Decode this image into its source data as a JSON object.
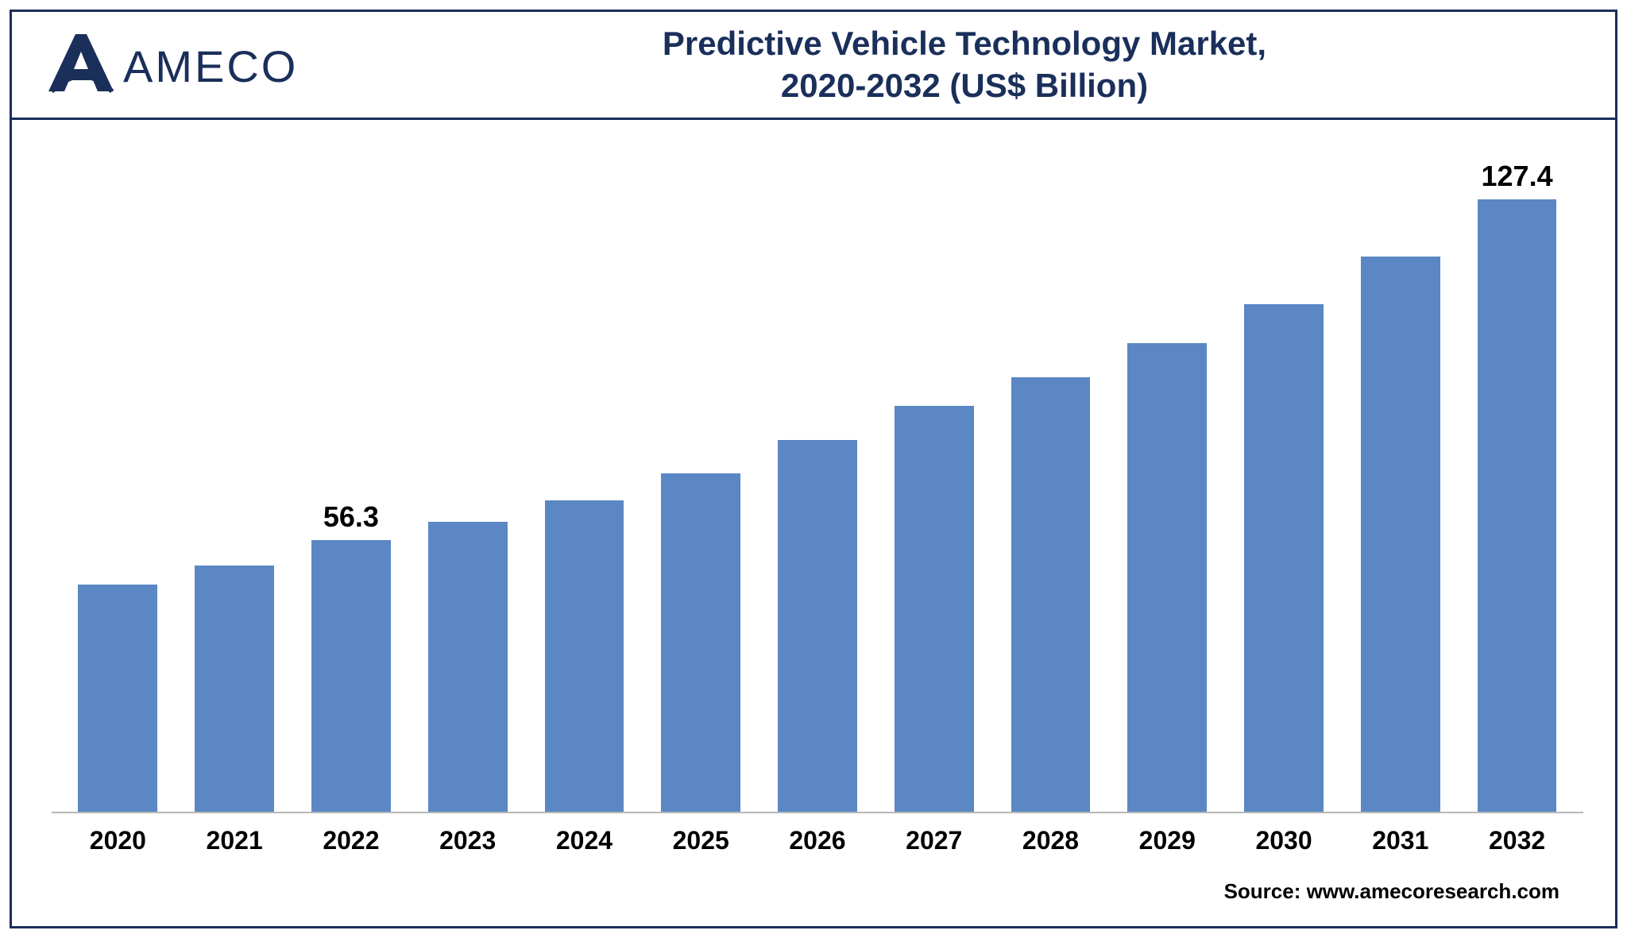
{
  "brand": {
    "name": "AMECO",
    "logo_color": "#1a2f5a"
  },
  "title": {
    "line1": "Predictive Vehicle Technology Market,",
    "line2": "2020-2032 (US$ Billion)",
    "color": "#1a2f5a",
    "fontsize": 42,
    "weight": 700
  },
  "chart": {
    "type": "bar",
    "categories": [
      "2020",
      "2021",
      "2022",
      "2023",
      "2024",
      "2025",
      "2026",
      "2027",
      "2028",
      "2029",
      "2030",
      "2031",
      "2032"
    ],
    "values": [
      47.0,
      51.0,
      56.3,
      60.0,
      64.5,
      70.0,
      77.0,
      84.0,
      90.0,
      97.0,
      105.0,
      115.0,
      127.4
    ],
    "show_value_label": [
      false,
      false,
      true,
      false,
      false,
      false,
      false,
      false,
      false,
      false,
      false,
      false,
      true
    ],
    "value_labels": [
      "",
      "",
      "56.3",
      "",
      "",
      "",
      "",
      "",
      "",
      "",
      "",
      "",
      "127.4"
    ],
    "bar_color": "#5b87c4",
    "background_color": "#ffffff",
    "axis_line_color": "#b8b8b8",
    "ylim_max": 135,
    "bar_width_ratio": 0.68,
    "x_label_fontsize": 32,
    "x_label_weight": 700,
    "value_label_fontsize": 36,
    "value_label_weight": 700,
    "value_label_color": "#000000"
  },
  "source": {
    "text": "Source: www.amecoresearch.com",
    "fontsize": 26,
    "weight": 700,
    "color": "#000000"
  },
  "frame": {
    "border_color": "#1a2f5a",
    "border_width": 3
  }
}
